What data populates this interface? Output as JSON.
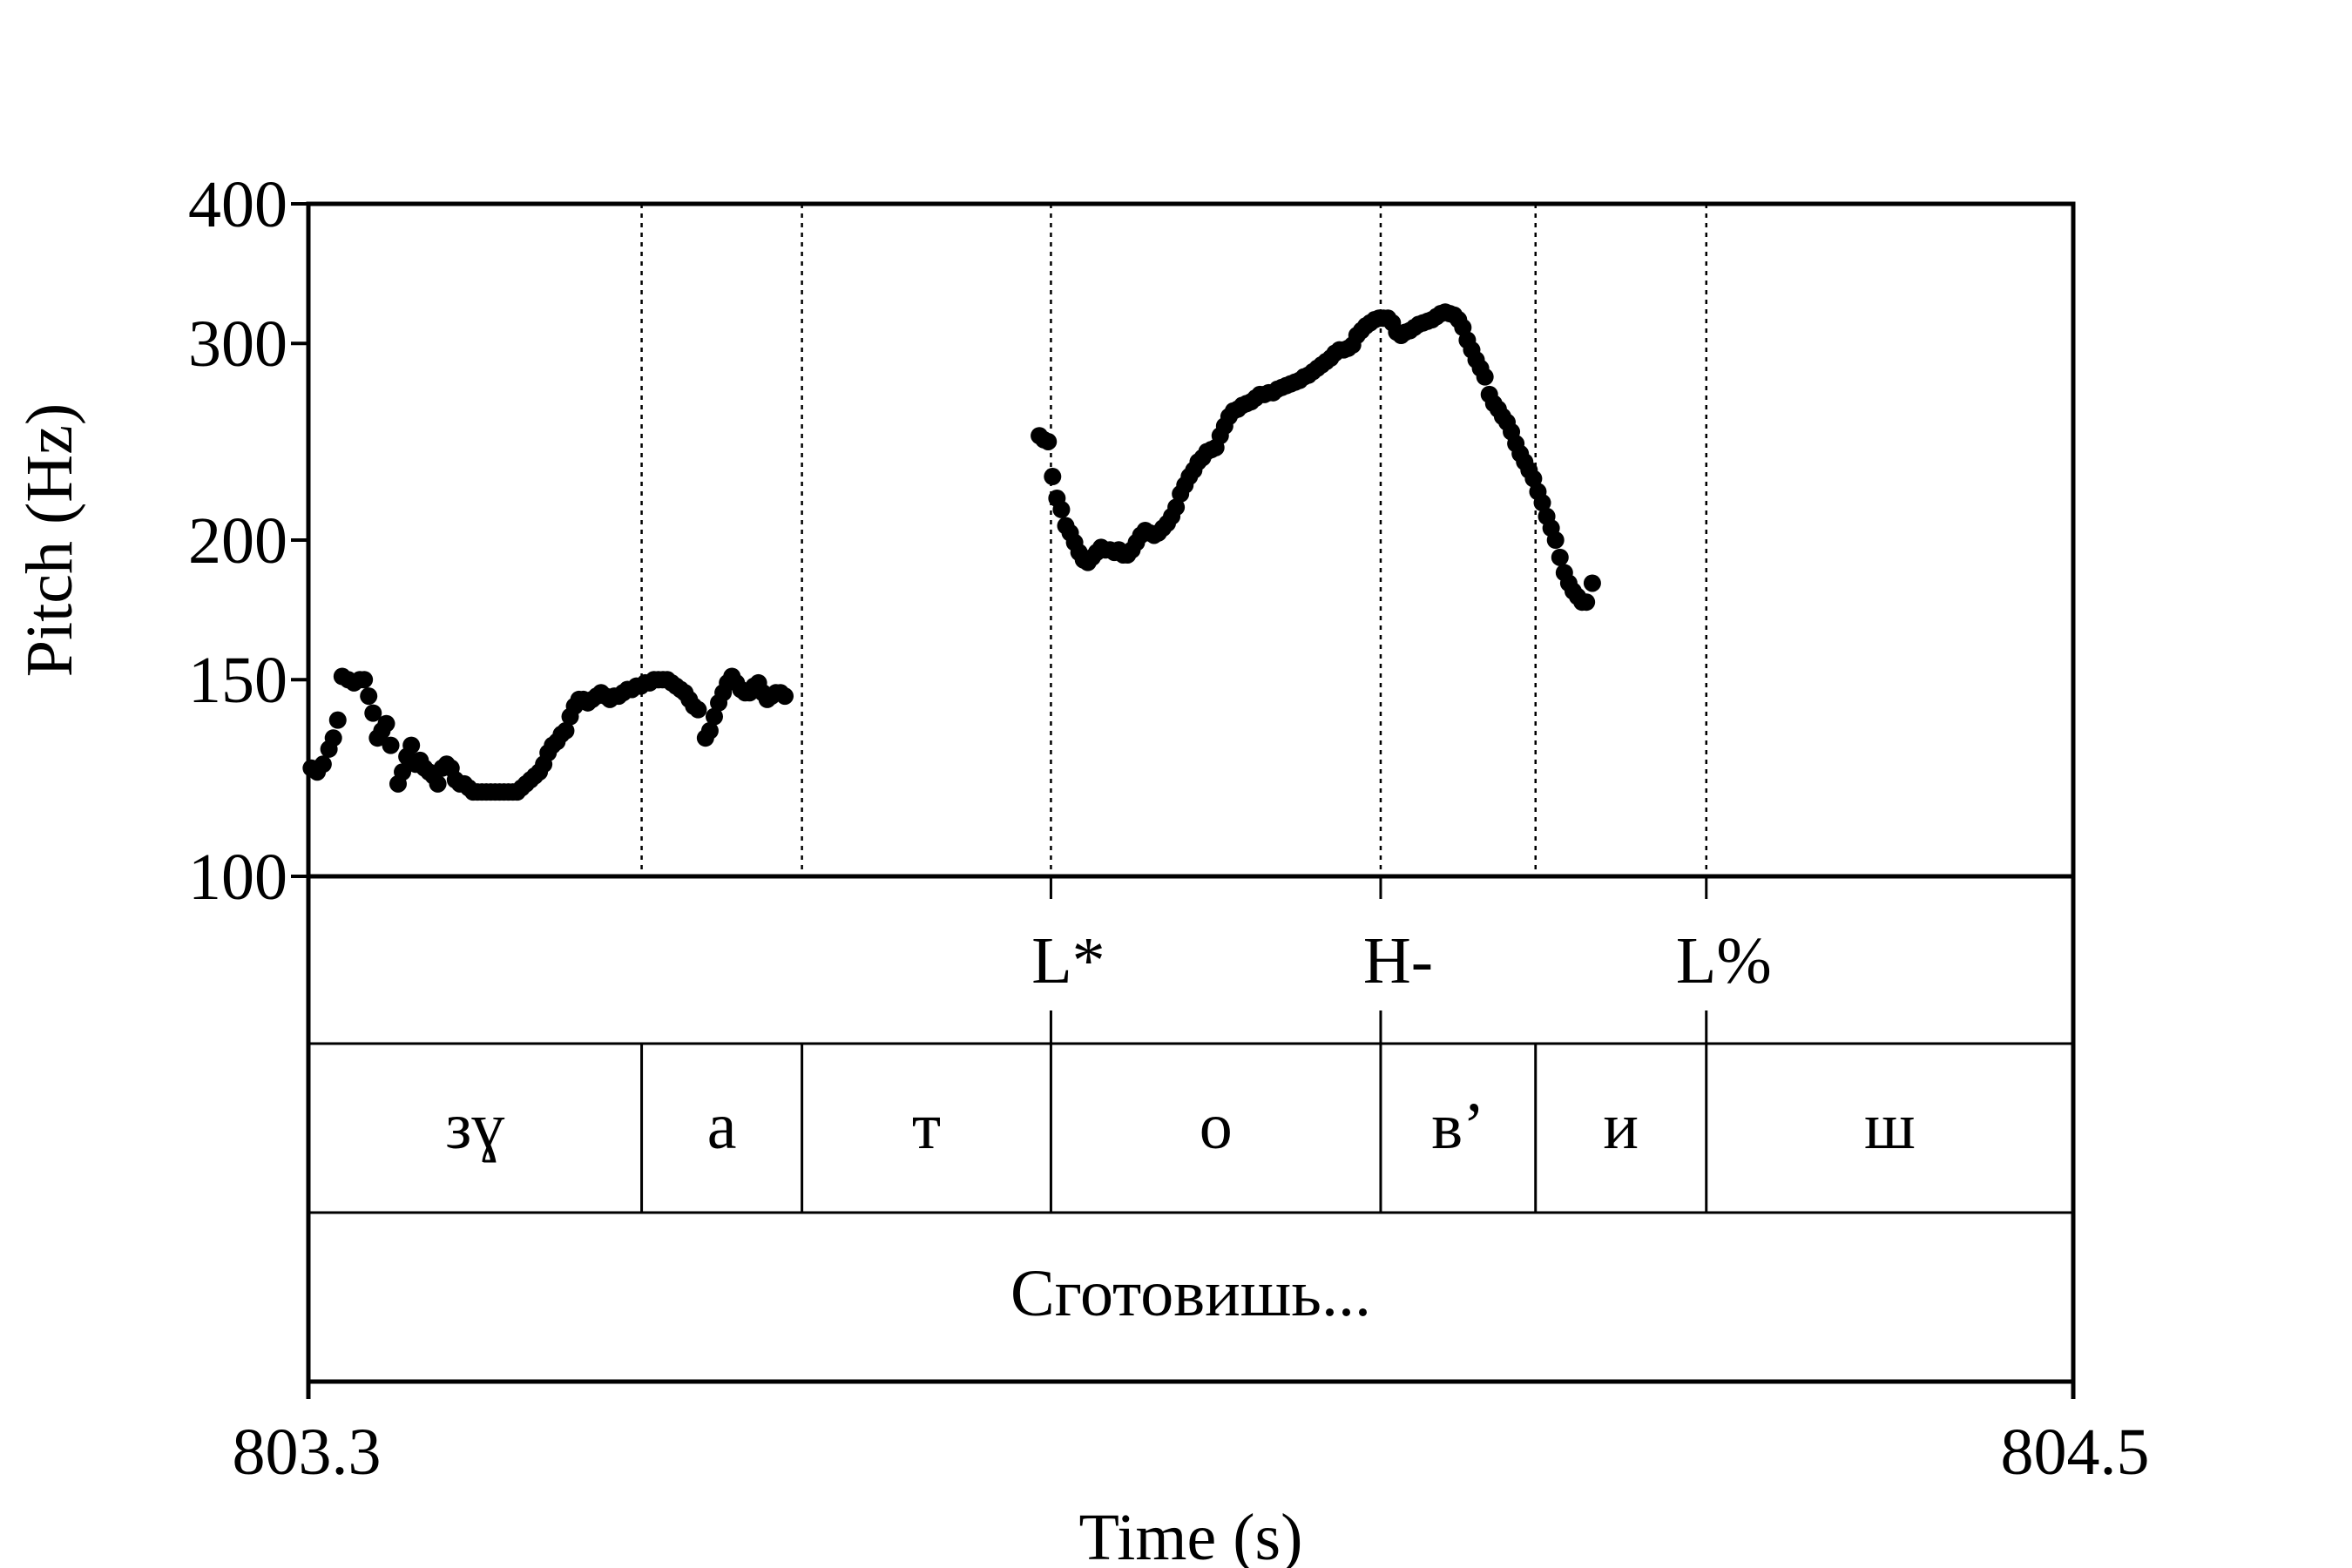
{
  "chart_data": {
    "type": "scatter",
    "title": "",
    "xlabel": "Time (s)",
    "ylabel": "Pitch (Hz)",
    "xlim": [
      803.3,
      804.5
    ],
    "ylim": [
      100,
      400
    ],
    "yscale": "log",
    "x_tick_labels": [
      "803.3",
      "804.5"
    ],
    "y_tick_values": [
      100,
      150,
      200,
      300,
      400
    ],
    "y_tick_labels": [
      "100",
      "150",
      "200",
      "300",
      "400"
    ],
    "grid": false,
    "boundaries": [
      803.5266,
      803.6356,
      803.8049,
      804.0291,
      804.1344,
      804.2505
    ],
    "tones": [
      {
        "label": "L*",
        "t": 803.8049
      },
      {
        "label": "H-",
        "t": 804.0291
      },
      {
        "label": "L%",
        "t": 804.2505
      }
    ],
    "segments": [
      {
        "label": "зɣ",
        "start": 803.3,
        "end": 803.5266
      },
      {
        "label": "а",
        "start": 803.5266,
        "end": 803.6356
      },
      {
        "label": "т",
        "start": 803.6356,
        "end": 803.8049
      },
      {
        "label": "о",
        "start": 803.8049,
        "end": 804.0291
      },
      {
        "label": "в’",
        "start": 804.0291,
        "end": 804.1344
      },
      {
        "label": "и",
        "start": 804.1344,
        "end": 804.2505
      },
      {
        "label": "ш",
        "start": 804.2505,
        "end": 804.5
      }
    ],
    "word": {
      "label": "Сготовишь...",
      "start": 803.3,
      "end": 804.5
    },
    "series": [
      {
        "points": [
          [
            803.302,
            125
          ],
          [
            803.306,
            124
          ],
          [
            803.31,
            126
          ],
          [
            803.314,
            130
          ],
          [
            803.317,
            133
          ],
          [
            803.32,
            138
          ],
          [
            803.323,
            151
          ],
          [
            803.327,
            150
          ],
          [
            803.331,
            149
          ],
          [
            803.335,
            150
          ],
          [
            803.338,
            150
          ],
          [
            803.341,
            145
          ],
          [
            803.344,
            140
          ],
          [
            803.347,
            133
          ],
          [
            803.35,
            135
          ],
          [
            803.353,
            137
          ],
          [
            803.356,
            131
          ],
          [
            803.361,
            121
          ],
          [
            803.364,
            124
          ],
          [
            803.367,
            128
          ],
          [
            803.37,
            131
          ],
          [
            803.373,
            126
          ],
          [
            803.376,
            127
          ],
          [
            803.379,
            125
          ],
          [
            803.382,
            124
          ],
          [
            803.385,
            123
          ],
          [
            803.388,
            121
          ],
          [
            803.391,
            125
          ],
          [
            803.394,
            126
          ],
          [
            803.397,
            125
          ],
          [
            803.4,
            122
          ],
          [
            803.403,
            121
          ],
          [
            803.406,
            121
          ],
          [
            803.409,
            120
          ],
          [
            803.412,
            119
          ],
          [
            803.415,
            119
          ],
          [
            803.418,
            119
          ],
          [
            803.421,
            119
          ],
          [
            803.424,
            119
          ],
          [
            803.427,
            119
          ],
          [
            803.43,
            119
          ],
          [
            803.433,
            119
          ],
          [
            803.436,
            119
          ],
          [
            803.439,
            119
          ],
          [
            803.442,
            119
          ],
          [
            803.445,
            120
          ],
          [
            803.448,
            121
          ],
          [
            803.451,
            122
          ],
          [
            803.454,
            123
          ],
          [
            803.457,
            124
          ],
          [
            803.46,
            126
          ],
          [
            803.463,
            129
          ],
          [
            803.466,
            131
          ],
          [
            803.469,
            132
          ],
          [
            803.472,
            134
          ],
          [
            803.475,
            135
          ],
          [
            803.478,
            139
          ],
          [
            803.481,
            142
          ],
          [
            803.484,
            144
          ],
          [
            803.487,
            144
          ],
          [
            803.49,
            143
          ],
          [
            803.493,
            144
          ],
          [
            803.496,
            145
          ],
          [
            803.499,
            146
          ],
          [
            803.502,
            145
          ],
          [
            803.505,
            144
          ],
          [
            803.508,
            145
          ],
          [
            803.511,
            145
          ],
          [
            803.514,
            146
          ],
          [
            803.517,
            147
          ],
          [
            803.52,
            147
          ],
          [
            803.523,
            148
          ],
          [
            803.526,
            148
          ],
          [
            803.529,
            149
          ],
          [
            803.532,
            149
          ],
          [
            803.535,
            150
          ],
          [
            803.538,
            150
          ],
          [
            803.541,
            150
          ],
          [
            803.544,
            150
          ],
          [
            803.547,
            149
          ],
          [
            803.55,
            148
          ],
          [
            803.553,
            147
          ],
          [
            803.556,
            146
          ],
          [
            803.559,
            144
          ],
          [
            803.562,
            142
          ],
          [
            803.565,
            141
          ],
          [
            803.57,
            133
          ],
          [
            803.573,
            135
          ],
          [
            803.576,
            139
          ],
          [
            803.579,
            143
          ],
          [
            803.582,
            146
          ],
          [
            803.585,
            149
          ],
          [
            803.588,
            151
          ],
          [
            803.591,
            149
          ],
          [
            803.594,
            147
          ],
          [
            803.597,
            146
          ],
          [
            803.6,
            146
          ],
          [
            803.603,
            148
          ],
          [
            803.606,
            149
          ],
          [
            803.609,
            146
          ],
          [
            803.612,
            144
          ],
          [
            803.615,
            145
          ],
          [
            803.618,
            146
          ],
          [
            803.621,
            146
          ],
          [
            803.624,
            145
          ]
        ]
      },
      {
        "points": [
          [
            803.797,
            248
          ],
          [
            803.8,
            246
          ],
          [
            803.803,
            245
          ],
          [
            803.806,
            228
          ],
          [
            803.809,
            218
          ],
          [
            803.812,
            213
          ],
          [
            803.815,
            206
          ],
          [
            803.818,
            203
          ],
          [
            803.821,
            199
          ],
          [
            803.824,
            195
          ],
          [
            803.827,
            192
          ],
          [
            803.83,
            191
          ],
          [
            803.833,
            193
          ],
          [
            803.836,
            195
          ],
          [
            803.839,
            197
          ],
          [
            803.842,
            196
          ],
          [
            803.845,
            196
          ],
          [
            803.848,
            195
          ],
          [
            803.851,
            196
          ],
          [
            803.854,
            194
          ],
          [
            803.857,
            194
          ],
          [
            803.86,
            196
          ],
          [
            803.863,
            199
          ],
          [
            803.866,
            202
          ],
          [
            803.869,
            204
          ],
          [
            803.872,
            203
          ],
          [
            803.875,
            202
          ],
          [
            803.878,
            203
          ],
          [
            803.881,
            205
          ],
          [
            803.884,
            207
          ],
          [
            803.887,
            210
          ],
          [
            803.89,
            214
          ],
          [
            803.893,
            220
          ],
          [
            803.896,
            224
          ],
          [
            803.899,
            228
          ],
          [
            803.902,
            231
          ],
          [
            803.905,
            235
          ],
          [
            803.908,
            237
          ],
          [
            803.911,
            240
          ],
          [
            803.914,
            241
          ],
          [
            803.917,
            242
          ],
          [
            803.92,
            248
          ],
          [
            803.923,
            253
          ],
          [
            803.926,
            258
          ],
          [
            803.929,
            261
          ],
          [
            803.932,
            262
          ],
          [
            803.935,
            264
          ],
          [
            803.938,
            265
          ],
          [
            803.941,
            266
          ],
          [
            803.944,
            268
          ],
          [
            803.947,
            270
          ],
          [
            803.95,
            270
          ],
          [
            803.953,
            271
          ],
          [
            803.956,
            271
          ],
          [
            803.959,
            273
          ],
          [
            803.962,
            274
          ],
          [
            803.965,
            275
          ],
          [
            803.968,
            276
          ],
          [
            803.971,
            277
          ],
          [
            803.974,
            278
          ],
          [
            803.977,
            280
          ],
          [
            803.98,
            281
          ],
          [
            803.983,
            283
          ],
          [
            803.986,
            285
          ],
          [
            803.989,
            287
          ],
          [
            803.992,
            289
          ],
          [
            803.995,
            291
          ],
          [
            803.998,
            294
          ],
          [
            804.001,
            296
          ],
          [
            804.004,
            296
          ],
          [
            804.007,
            297
          ],
          [
            804.01,
            299
          ],
          [
            804.013,
            305
          ],
          [
            804.016,
            308
          ],
          [
            804.019,
            311
          ],
          [
            804.022,
            313
          ],
          [
            804.025,
            315
          ],
          [
            804.028,
            316
          ],
          [
            804.031,
            316
          ],
          [
            804.034,
            316
          ],
          [
            804.037,
            313
          ],
          [
            804.04,
            307
          ],
          [
            804.043,
            305
          ],
          [
            804.046,
            307
          ],
          [
            804.049,
            308
          ],
          [
            804.052,
            310
          ],
          [
            804.055,
            312
          ],
          [
            804.058,
            313
          ],
          [
            804.061,
            314
          ],
          [
            804.064,
            315
          ],
          [
            804.067,
            317
          ],
          [
            804.07,
            319
          ],
          [
            804.073,
            320
          ],
          [
            804.076,
            319
          ],
          [
            804.079,
            318
          ],
          [
            804.082,
            315
          ],
          [
            804.085,
            310
          ],
          [
            804.088,
            302
          ],
          [
            804.091,
            296
          ],
          [
            804.094,
            290
          ],
          [
            804.097,
            285
          ],
          [
            804.1,
            280
          ],
          [
            804.103,
            270
          ],
          [
            804.106,
            265
          ],
          [
            804.109,
            262
          ],
          [
            804.112,
            258
          ],
          [
            804.115,
            255
          ],
          [
            804.118,
            250
          ],
          [
            804.121,
            244
          ],
          [
            804.124,
            239
          ],
          [
            804.127,
            235
          ],
          [
            804.13,
            231
          ],
          [
            804.133,
            227
          ],
          [
            804.136,
            221
          ],
          [
            804.139,
            216
          ],
          [
            804.142,
            210
          ],
          [
            804.145,
            205
          ],
          [
            804.148,
            200
          ],
          [
            804.151,
            193
          ],
          [
            804.154,
            187
          ],
          [
            804.157,
            183
          ],
          [
            804.16,
            180
          ],
          [
            804.163,
            178
          ],
          [
            804.166,
            176
          ],
          [
            804.169,
            176
          ],
          [
            804.173,
            183
          ]
        ]
      }
    ]
  }
}
